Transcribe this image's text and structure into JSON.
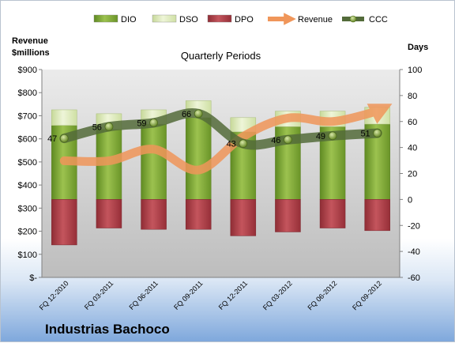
{
  "chart_data": {
    "type": "bar",
    "title": "Quarterly Periods",
    "company": "Industrias Bachoco",
    "left_axis_label": [
      "Revenue",
      "$millions"
    ],
    "right_axis_label": "Days",
    "left_ylim": [
      0,
      900
    ],
    "left_ticks": [
      "$900",
      "$800",
      "$700",
      "$600",
      "$500",
      "$400",
      "$300",
      "$200",
      "$100",
      "$-"
    ],
    "right_ylim": [
      -60,
      100
    ],
    "right_ticks": [
      "100",
      "80",
      "60",
      "40",
      "20",
      "0",
      "-20",
      "-40",
      "-60"
    ],
    "categories": [
      "FQ 12-2010",
      "FQ 03-2011",
      "FQ 06-2011",
      "FQ 09-2011",
      "FQ 12-2011",
      "FQ 03-2012",
      "FQ 06-2012",
      "FQ 09-2012"
    ],
    "legend": [
      "DIO",
      "DSO",
      "DPO",
      "Revenue",
      "CCC"
    ],
    "series": [
      {
        "name": "DIO",
        "axis": "right",
        "values": [
          57,
          54,
          58,
          63,
          52,
          56,
          56,
          58
        ]
      },
      {
        "name": "DSO",
        "axis": "right",
        "values": [
          12,
          12,
          11,
          13,
          11,
          12,
          12,
          13
        ]
      },
      {
        "name": "DPO",
        "axis": "right",
        "values": [
          -35,
          -22,
          -23,
          -23,
          -28,
          -25,
          -22,
          -24
        ]
      },
      {
        "name": "Revenue",
        "axis": "left",
        "values": [
          505,
          505,
          555,
          465,
          610,
          690,
          675,
          720
        ]
      },
      {
        "name": "CCC",
        "axis": "right",
        "values": [
          47,
          56,
          59,
          66,
          43,
          46,
          49,
          51
        ]
      }
    ],
    "ccc_labels": [
      "47",
      "56",
      "59",
      "66",
      "43",
      "46",
      "49",
      "51"
    ],
    "colors": {
      "DIO": "#7fa53a",
      "DSO": "#dce8b8",
      "DPO": "#b0424a",
      "Revenue": "#f0965a",
      "CCC": "#536b3a",
      "plot_bg_top": "#ebebeb",
      "plot_bg_bottom": "#bdbdbd"
    },
    "grid": false,
    "legend_position": "top"
  }
}
